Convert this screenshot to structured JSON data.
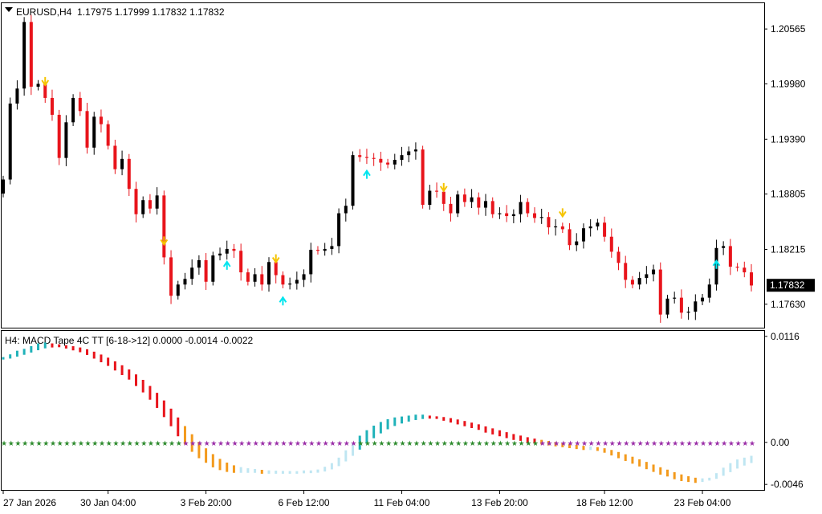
{
  "main_chart": {
    "header": "EURUSD,H4  1.17975 1.17999 1.17832 1.17832",
    "price_labels": [
      {
        "text": "1.20565",
        "value": 1.20565
      },
      {
        "text": "1.19980",
        "value": 1.1998
      },
      {
        "text": "1.19390",
        "value": 1.1939
      },
      {
        "text": "1.18805",
        "value": 1.18805
      },
      {
        "text": "1.18215",
        "value": 1.18215
      },
      {
        "text": "1.17630",
        "value": 1.1763
      }
    ],
    "current_price": {
      "text": "1.17832",
      "value": 1.17832
    },
    "colors": {
      "bull": "#000000",
      "bear": "#e8141b",
      "arrow_up": "#00e5ee",
      "arrow_down": "#f5c400"
    }
  },
  "indicator": {
    "header": "H4: MACD Tape 4C TT [6-18->12] 0.0000 -0.0014 -0.0022",
    "levels": [
      {
        "text": "0.0116",
        "value": 0.0116
      },
      {
        "text": "0.00",
        "value": 0.0
      },
      {
        "text": "-0.0046",
        "value": -0.0046
      }
    ],
    "colors": {
      "up_strong": "#20b2b9",
      "up_weak": "#bfe6f2",
      "down_strong": "#e8141b",
      "down_weak": "#f39a1c",
      "zero_pos": "#9b2fa8",
      "zero_neg": "#2e8b2e"
    }
  },
  "time_labels": [
    "27 Jan 2026",
    "30 Jan 04:00",
    "3 Feb 20:00",
    "6 Feb 12:00",
    "11 Feb 04:00",
    "13 Feb 20:00",
    "18 Feb 12:00",
    "23 Feb 04:00"
  ],
  "chart_data": [
    {
      "type": "candlestick",
      "title": "EURUSD,H4",
      "ylim": [
        1.1738,
        1.2084
      ],
      "x_tick_labels": [
        "27 Jan 2026",
        "30 Jan 04:00",
        "3 Feb 20:00",
        "6 Feb 12:00",
        "11 Feb 04:00",
        "13 Feb 20:00",
        "18 Feb 12:00",
        "23 Feb 04:00"
      ],
      "closes": [
        1.1896,
        1.1977,
        1.1993,
        1.2064,
        1.1995,
        1.1998,
        1.1983,
        1.1965,
        1.1919,
        1.1957,
        1.1983,
        1.1969,
        1.193,
        1.1963,
        1.1955,
        1.1932,
        1.1907,
        1.1918,
        1.1886,
        1.1859,
        1.1874,
        1.1865,
        1.1879,
        1.1813,
        1.1772,
        1.1784,
        1.179,
        1.1802,
        1.181,
        1.1787,
        1.1815,
        1.1817,
        1.1822,
        1.182,
        1.1797,
        1.1787,
        1.1795,
        1.1784,
        1.1808,
        1.1794,
        1.1784,
        1.1785,
        1.1789,
        1.1795,
        1.1821,
        1.182,
        1.1822,
        1.1825,
        1.186,
        1.1868,
        1.1922,
        1.192,
        1.1919,
        1.1918,
        1.1914,
        1.1912,
        1.1917,
        1.1922,
        1.1926,
        1.1928,
        1.1869,
        1.1884,
        1.1883,
        1.187,
        1.186,
        1.188,
        1.1872,
        1.1877,
        1.1866,
        1.1873,
        1.1859,
        1.186,
        1.1857,
        1.1859,
        1.1872,
        1.186,
        1.1855,
        1.1856,
        1.1845,
        1.1846,
        1.1843,
        1.1826,
        1.183,
        1.1844,
        1.1846,
        1.185,
        1.1835,
        1.1819,
        1.1807,
        1.1789,
        1.1784,
        1.1791,
        1.1795,
        1.18,
        1.1752,
        1.1769,
        1.177,
        1.1754,
        1.1755,
        1.1766,
        1.177,
        1.1784,
        1.1823,
        1.1825,
        1.1803,
        1.1802,
        1.1797,
        1.1783
      ]
    },
    {
      "type": "bar",
      "title": "H4: MACD Tape 4C TT [6-18->12]",
      "ylim": [
        -0.0052,
        0.0122
      ],
      "zero_line": 0.0,
      "macd": [
        0.0092,
        0.0095,
        0.0099,
        0.0101,
        0.0104,
        0.0107,
        0.0108,
        0.0107,
        0.0106,
        0.0104,
        0.0102,
        0.01,
        0.0097,
        0.0093,
        0.0089,
        0.0085,
        0.008,
        0.0075,
        0.007,
        0.0063,
        0.0056,
        0.0048,
        0.0039,
        0.0029,
        0.0019,
        0.0008,
        -0.0001,
        -0.0009,
        -0.0016,
        -0.0021,
        -0.0026,
        -0.0029,
        -0.0031,
        -0.0032,
        -0.0032,
        -0.0032,
        -0.0032,
        -0.0033,
        -0.0033,
        -0.0033,
        -0.0033,
        -0.0033,
        -0.0033,
        -0.0032,
        -0.0032,
        -0.0031,
        -0.0028,
        -0.0024,
        -0.0018,
        -0.001,
        -0.0002,
        0.0006,
        0.0012,
        0.0017,
        0.0021,
        0.0024,
        0.0026,
        0.0027,
        0.0028,
        0.0029,
        0.0029,
        0.0028,
        0.0027,
        0.0025,
        0.0023,
        0.0021,
        0.0019,
        0.0017,
        0.0015,
        0.0012,
        0.001,
        0.0008,
        0.0006,
        0.0004,
        0.0003,
        0.0001,
        -0.0,
        -0.0001,
        -0.0002,
        -0.0003,
        -0.0004,
        -0.0005,
        -0.0006,
        -0.0007,
        -0.0007,
        -0.0008,
        -0.001,
        -0.0013,
        -0.0016,
        -0.0019,
        -0.0022,
        -0.0025,
        -0.0028,
        -0.0031,
        -0.0034,
        -0.0036,
        -0.0039,
        -0.0041,
        -0.0042,
        -0.0043,
        -0.0042,
        -0.004,
        -0.0035,
        -0.0029,
        -0.0024,
        -0.002,
        -0.0018,
        -0.0016
      ]
    }
  ]
}
